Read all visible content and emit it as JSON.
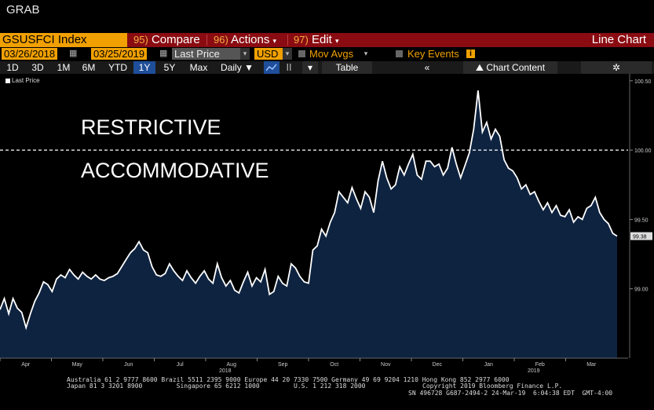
{
  "window": {
    "title": "GRAB"
  },
  "menubar": {
    "ticker": "GSUSFCI Index",
    "compare": {
      "num": "95)",
      "label": "Compare"
    },
    "actions": {
      "num": "96)",
      "label": "Actions"
    },
    "edit": {
      "num": "97)",
      "label": "Edit"
    },
    "chart_type": "Line Chart"
  },
  "params": {
    "start_date": "03/26/2018",
    "end_date": "03/25/2019",
    "field": "Last Price",
    "currency": "USD",
    "mov_avgs": "Mov Avgs",
    "key_events": "Key Events",
    "info": "i"
  },
  "periods": [
    "1D",
    "3D",
    "1M",
    "6M",
    "YTD",
    "1Y",
    "5Y",
    "Max"
  ],
  "active_period": "1Y",
  "toolbar": {
    "frequency": "Daily",
    "table": "Table",
    "chart_content": "Chart Content",
    "collapse": "«",
    "gear": "✲"
  },
  "legend": {
    "label": "Last Price"
  },
  "annotations": {
    "upper": "RESTRICTIVE",
    "lower": "ACCOMMODATIVE"
  },
  "colors": {
    "accent": "#f0a000",
    "menubar": "#8a0c12",
    "area": "#0e2340",
    "line": "#ffffff",
    "active_period": "#1f4e9a"
  },
  "chart_data": {
    "type": "area",
    "x_ticks": [
      "Apr",
      "May",
      "Jun",
      "Jul",
      "Aug",
      "Sep",
      "Oct",
      "Nov",
      "Dec",
      "Jan",
      "Feb",
      "Mar"
    ],
    "x_year_labels": [
      {
        "after": "Aug",
        "label": "2018"
      },
      {
        "after": "Feb",
        "label": "2019"
      }
    ],
    "y_ticks": [
      "99.00",
      "99.50",
      "100.00",
      "100.50"
    ],
    "ylim": [
      98.5,
      100.55
    ],
    "reference_line": 100.0,
    "last_value_label": "99.38",
    "values": [
      98.85,
      98.93,
      98.82,
      98.93,
      98.86,
      98.83,
      98.72,
      98.82,
      98.91,
      98.97,
      99.05,
      99.03,
      98.98,
      99.07,
      99.1,
      99.08,
      99.14,
      99.1,
      99.07,
      99.12,
      99.09,
      99.07,
      99.1,
      99.07,
      99.06,
      99.08,
      99.09,
      99.11,
      99.16,
      99.21,
      99.26,
      99.29,
      99.34,
      99.28,
      99.26,
      99.16,
      99.1,
      99.09,
      99.11,
      99.18,
      99.13,
      99.09,
      99.06,
      99.13,
      99.08,
      99.04,
      99.09,
      99.13,
      99.07,
      99.04,
      99.18,
      99.08,
      99.02,
      99.06,
      98.99,
      98.97,
      99.05,
      99.12,
      99.02,
      99.08,
      99.05,
      99.14,
      98.96,
      98.98,
      99.09,
      99.04,
      99.02,
      99.18,
      99.15,
      99.09,
      99.05,
      99.04,
      99.28,
      99.31,
      99.43,
      99.38,
      99.48,
      99.55,
      99.7,
      99.66,
      99.62,
      99.73,
      99.65,
      99.58,
      99.7,
      99.66,
      99.55,
      99.78,
      99.92,
      99.8,
      99.72,
      99.75,
      99.88,
      99.82,
      99.9,
      99.97,
      99.82,
      99.79,
      99.92,
      99.92,
      99.88,
      99.9,
      99.82,
      99.87,
      100.02,
      99.9,
      99.8,
      99.89,
      99.98,
      100.15,
      100.43,
      100.13,
      100.2,
      100.08,
      100.15,
      100.1,
      99.93,
      99.87,
      99.85,
      99.8,
      99.72,
      99.75,
      99.68,
      99.7,
      99.63,
      99.57,
      99.62,
      99.55,
      99.6,
      99.53,
      99.52,
      99.57,
      99.48,
      99.52,
      99.5,
      99.58,
      99.6,
      99.66,
      99.55,
      99.5,
      99.47,
      99.4,
      99.38
    ]
  },
  "footer": {
    "line1": "Australia 61 2 9777 8600 Brazil 5511 2395 9000 Europe 44 20 7330 7500 Germany 49 69 9204 1210 Hong Kong 852 2977 6000",
    "line2": "Japan 81 3 3201 8900         Singapore 65 6212 1000         U.S. 1 212 318 2000",
    "copyright": "Copyright 2019 Bloomberg Finance L.P.",
    "sn": "SN 496728 G687-2494-2 24-Mar-19  6:04:38 EDT  GMT-4:00"
  }
}
